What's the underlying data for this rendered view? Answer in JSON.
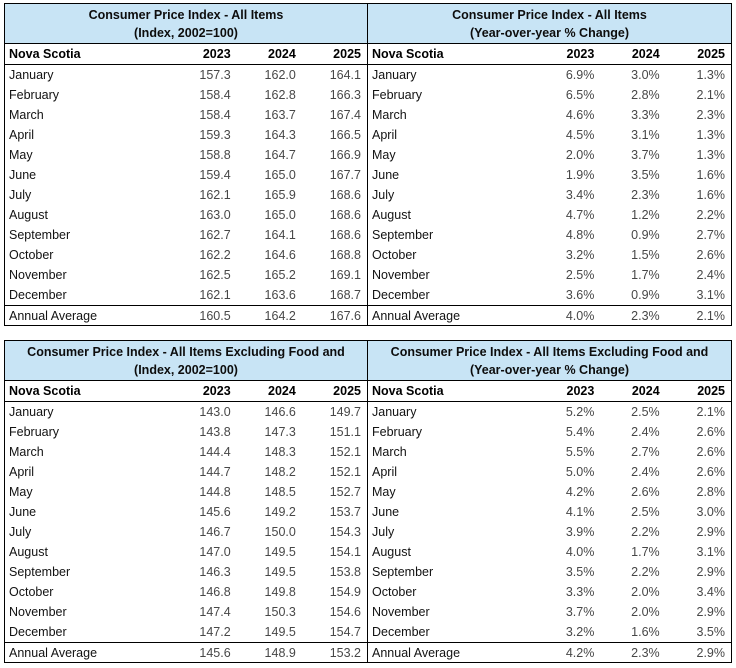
{
  "styles": {
    "header_background": "#c8e4f5",
    "border_color": "#000000",
    "label_text_color": "#121212",
    "value_text_color": "#474747"
  },
  "tables": [
    {
      "title_line1": "Consumer Price Index - All Items",
      "title_line2": "(Index, 2002=100)",
      "columns": [
        "Nova Scotia",
        "2023",
        "2024",
        "2025"
      ],
      "rows": [
        {
          "label": "January",
          "values": [
            "157.3",
            "162.0",
            "164.1"
          ]
        },
        {
          "label": "February",
          "values": [
            "158.4",
            "162.8",
            "166.3"
          ]
        },
        {
          "label": "March",
          "values": [
            "158.4",
            "163.7",
            "167.4"
          ]
        },
        {
          "label": "April",
          "values": [
            "159.3",
            "164.3",
            "166.5"
          ]
        },
        {
          "label": "May",
          "values": [
            "158.8",
            "164.7",
            "166.9"
          ]
        },
        {
          "label": "June",
          "values": [
            "159.4",
            "165.0",
            "167.7"
          ]
        },
        {
          "label": "July",
          "values": [
            "162.1",
            "165.9",
            "168.6"
          ]
        },
        {
          "label": "August",
          "values": [
            "163.0",
            "165.0",
            "168.6"
          ]
        },
        {
          "label": "September",
          "values": [
            "162.7",
            "164.1",
            "168.6"
          ]
        },
        {
          "label": "October",
          "values": [
            "162.2",
            "164.6",
            "168.8"
          ]
        },
        {
          "label": "November",
          "values": [
            "162.5",
            "165.2",
            "169.1"
          ]
        },
        {
          "label": "December",
          "values": [
            "162.1",
            "163.6",
            "168.7"
          ]
        }
      ],
      "footer": {
        "label": "Annual Average",
        "values": [
          "160.5",
          "164.2",
          "167.6"
        ]
      }
    },
    {
      "title_line1": "Consumer Price Index - All Items",
      "title_line2": "(Year-over-year % Change)",
      "columns": [
        "Nova Scotia",
        "2023",
        "2024",
        "2025"
      ],
      "rows": [
        {
          "label": "January",
          "values": [
            "6.9%",
            "3.0%",
            "1.3%"
          ]
        },
        {
          "label": "February",
          "values": [
            "6.5%",
            "2.8%",
            "2.1%"
          ]
        },
        {
          "label": "March",
          "values": [
            "4.6%",
            "3.3%",
            "2.3%"
          ]
        },
        {
          "label": "April",
          "values": [
            "4.5%",
            "3.1%",
            "1.3%"
          ]
        },
        {
          "label": "May",
          "values": [
            "2.0%",
            "3.7%",
            "1.3%"
          ]
        },
        {
          "label": "June",
          "values": [
            "1.9%",
            "3.5%",
            "1.6%"
          ]
        },
        {
          "label": "July",
          "values": [
            "3.4%",
            "2.3%",
            "1.6%"
          ]
        },
        {
          "label": "August",
          "values": [
            "4.7%",
            "1.2%",
            "2.2%"
          ]
        },
        {
          "label": "September",
          "values": [
            "4.8%",
            "0.9%",
            "2.7%"
          ]
        },
        {
          "label": "October",
          "values": [
            "3.2%",
            "1.5%",
            "2.6%"
          ]
        },
        {
          "label": "November",
          "values": [
            "2.5%",
            "1.7%",
            "2.4%"
          ]
        },
        {
          "label": "December",
          "values": [
            "3.6%",
            "0.9%",
            "3.1%"
          ]
        }
      ],
      "footer": {
        "label": "Annual Average",
        "values": [
          "4.0%",
          "2.3%",
          "2.1%"
        ]
      }
    },
    {
      "title_line1": "Consumer Price Index - All Items Excluding Food and",
      "title_line2": "(Index, 2002=100)",
      "columns": [
        "Nova Scotia",
        "2023",
        "2024",
        "2025"
      ],
      "rows": [
        {
          "label": "January",
          "values": [
            "143.0",
            "146.6",
            "149.7"
          ]
        },
        {
          "label": "February",
          "values": [
            "143.8",
            "147.3",
            "151.1"
          ]
        },
        {
          "label": "March",
          "values": [
            "144.4",
            "148.3",
            "152.1"
          ]
        },
        {
          "label": "April",
          "values": [
            "144.7",
            "148.2",
            "152.1"
          ]
        },
        {
          "label": "May",
          "values": [
            "144.8",
            "148.5",
            "152.7"
          ]
        },
        {
          "label": "June",
          "values": [
            "145.6",
            "149.2",
            "153.7"
          ]
        },
        {
          "label": "July",
          "values": [
            "146.7",
            "150.0",
            "154.3"
          ]
        },
        {
          "label": "August",
          "values": [
            "147.0",
            "149.5",
            "154.1"
          ]
        },
        {
          "label": "September",
          "values": [
            "146.3",
            "149.5",
            "153.8"
          ]
        },
        {
          "label": "October",
          "values": [
            "146.8",
            "149.8",
            "154.9"
          ]
        },
        {
          "label": "November",
          "values": [
            "147.4",
            "150.3",
            "154.6"
          ]
        },
        {
          "label": "December",
          "values": [
            "147.2",
            "149.5",
            "154.7"
          ]
        }
      ],
      "footer": {
        "label": "Annual Average",
        "values": [
          "145.6",
          "148.9",
          "153.2"
        ]
      }
    },
    {
      "title_line1": "Consumer Price Index - All Items Excluding Food and",
      "title_line2": "(Year-over-year % Change)",
      "columns": [
        "Nova Scotia",
        "2023",
        "2024",
        "2025"
      ],
      "rows": [
        {
          "label": "January",
          "values": [
            "5.2%",
            "2.5%",
            "2.1%"
          ]
        },
        {
          "label": "February",
          "values": [
            "5.4%",
            "2.4%",
            "2.6%"
          ]
        },
        {
          "label": "March",
          "values": [
            "5.5%",
            "2.7%",
            "2.6%"
          ]
        },
        {
          "label": "April",
          "values": [
            "5.0%",
            "2.4%",
            "2.6%"
          ]
        },
        {
          "label": "May",
          "values": [
            "4.2%",
            "2.6%",
            "2.8%"
          ]
        },
        {
          "label": "June",
          "values": [
            "4.1%",
            "2.5%",
            "3.0%"
          ]
        },
        {
          "label": "July",
          "values": [
            "3.9%",
            "2.2%",
            "2.9%"
          ]
        },
        {
          "label": "August",
          "values": [
            "4.0%",
            "1.7%",
            "3.1%"
          ]
        },
        {
          "label": "September",
          "values": [
            "3.5%",
            "2.2%",
            "2.9%"
          ]
        },
        {
          "label": "October",
          "values": [
            "3.3%",
            "2.0%",
            "3.4%"
          ]
        },
        {
          "label": "November",
          "values": [
            "3.7%",
            "2.0%",
            "2.9%"
          ]
        },
        {
          "label": "December",
          "values": [
            "3.2%",
            "1.6%",
            "3.5%"
          ]
        }
      ],
      "footer": {
        "label": "Annual Average",
        "values": [
          "4.2%",
          "2.3%",
          "2.9%"
        ]
      }
    }
  ]
}
